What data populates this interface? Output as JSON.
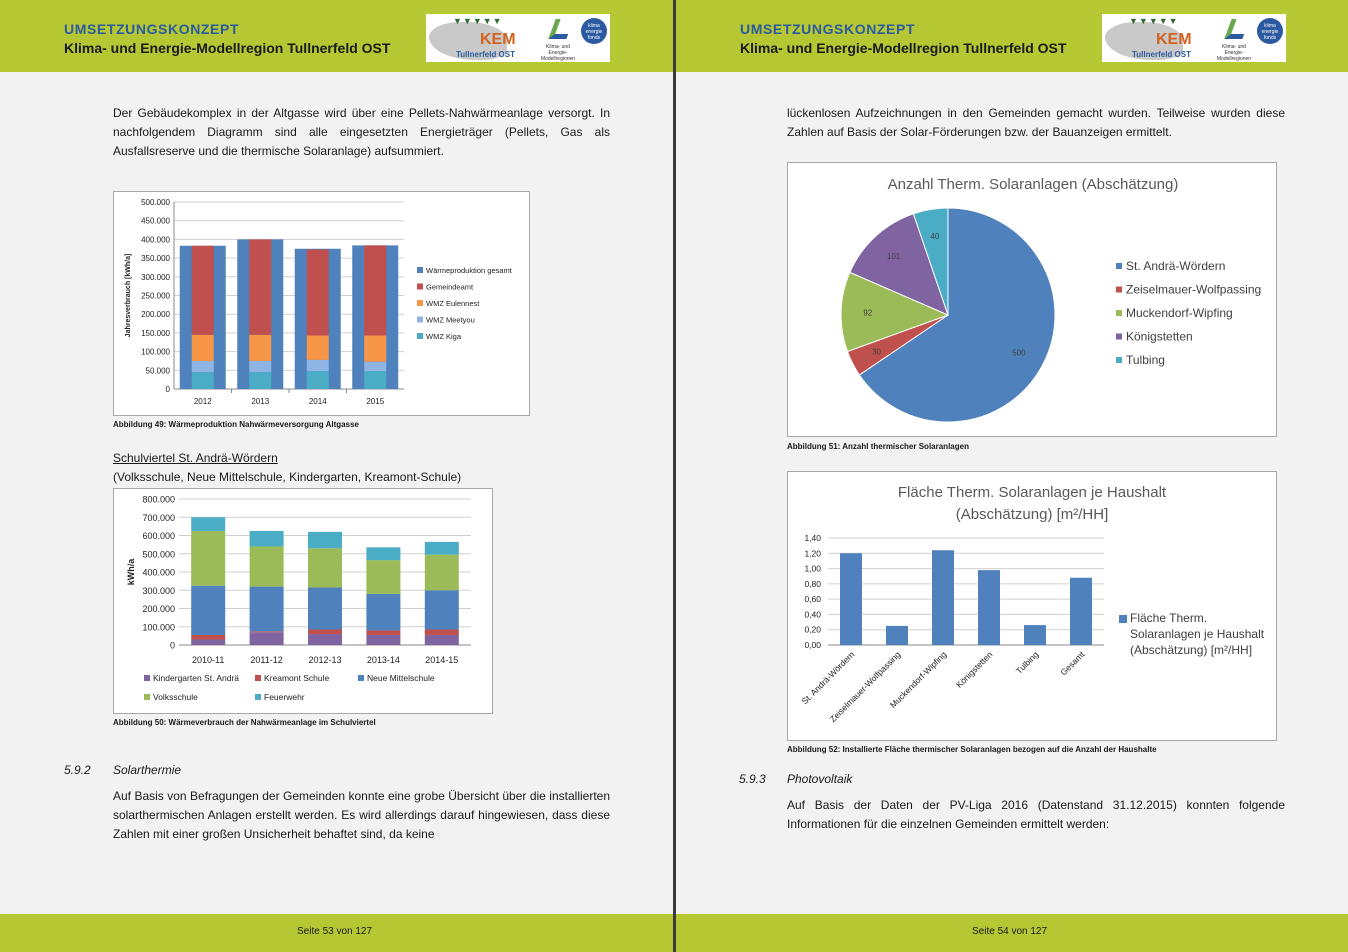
{
  "header": {
    "title": "UMSETZUNGSKONZEPT",
    "subtitle": "Klima- und Energie-Modellregion Tullnerfeld OST",
    "logo_text": "KEM",
    "logo_sub": "Tullnerfeld OST",
    "logo_right": "Klima- und Energie-Modellregionen",
    "logo_fund": "klima energie fonds"
  },
  "colors": {
    "accent_green": "#b5c733",
    "header_blue": "#2c5aa0"
  },
  "page53": {
    "para1": "Der Gebäudekomplex in der Altgasse wird über eine Pellets-Nahwärmeanlage versorgt. In nachfolgendem Diagramm sind alle eingesetzten Energieträger (Pellets, Gas als Ausfallsreserve und die thermische Solaranlage) aufsummiert.",
    "caption49": "Abbildung 49:   Wärmeproduktion Nahwärmeversorgung Altgasse",
    "schul_title": "Schulviertel St. Andrä-Wördern",
    "schul_sub": "(Volksschule, Neue Mittelschule, Kindergarten, Kreamont-Schule)",
    "caption50": "Abbildung 50:   Wärmeverbrauch der Nahwärmeanlage im Schulviertel",
    "section_num": "5.9.2",
    "section_title": "Solarthermie",
    "para2": "Auf Basis von Befragungen der Gemeinden konnte eine grobe Übersicht über die installierten solarthermischen Anlagen erstellt werden. Es wird allerdings darauf hingewiesen, dass diese Zahlen mit einer großen Unsicherheit behaftet sind, da keine",
    "footer": "Seite 53 von 127"
  },
  "page54": {
    "para1": "lückenlosen Aufzeichnungen in den Gemeinden gemacht wurden. Teilweise wurden diese Zahlen auf Basis der Solar-Förderungen bzw. der Bauanzeigen ermittelt.",
    "caption51": "Abbildung 51:   Anzahl thermischer Solaranlagen",
    "caption52": "Abbildung 52:   Installierte Fläche thermischer Solaranlagen bezogen auf die Anzahl der Haushalte",
    "section_num": "5.9.3",
    "section_title": "Photovoltaik",
    "para2": "Auf Basis der Daten der PV-Liga 2016 (Datenstand 31.12.2015) konnten folgende Informationen für die einzelnen Gemeinden ermittelt werden:",
    "footer": "Seite 54 von 127"
  },
  "chart_data": [
    {
      "id": "chart49",
      "type": "bar",
      "title": "",
      "xlabel": "",
      "ylabel": "Jahresverbrauch [kWh/a]",
      "ylim": [
        0,
        500000
      ],
      "yticks": [
        "0",
        "50.000",
        "100.000",
        "150.000",
        "200.000",
        "250.000",
        "300.000",
        "350.000",
        "400.000",
        "450.000",
        "500.000"
      ],
      "categories": [
        "2012",
        "2013",
        "2014",
        "2015"
      ],
      "series": [
        {
          "name": "Wärmeproduktion gesamt",
          "color": "#4f81bd",
          "values": [
            383000,
            400000,
            375000,
            384000
          ]
        },
        {
          "name": "Gemeindeamt",
          "color": "#c0504d",
          "values": [
            238000,
            255000,
            230000,
            241000
          ]
        },
        {
          "name": "WMZ Eulennest",
          "color": "#f79646",
          "values": [
            70000,
            70000,
            65000,
            70000
          ]
        },
        {
          "name": "WMZ Meetyou",
          "color": "#8eb4e3",
          "values": [
            30000,
            30000,
            30000,
            25000
          ]
        },
        {
          "name": "WMZ Kiga",
          "color": "#4bacc6",
          "values": [
            45000,
            45000,
            48000,
            48000
          ]
        }
      ],
      "legend": "right"
    },
    {
      "id": "chart50",
      "type": "bar",
      "stacked": true,
      "title": "",
      "ylabel": "kWh/a",
      "ylim": [
        0,
        800000
      ],
      "yticks": [
        "0",
        "100.000",
        "200.000",
        "300.000",
        "400.000",
        "500.000",
        "600.000",
        "700.000",
        "800.000"
      ],
      "categories": [
        "2010-11",
        "2011-12",
        "2012-13",
        "2013-14",
        "2014-15"
      ],
      "series": [
        {
          "name": "Kindergarten St. Andrä",
          "color": "#8064a2",
          "values": [
            30000,
            70000,
            60000,
            55000,
            55000
          ]
        },
        {
          "name": "Kreamont Schule",
          "color": "#c0504d",
          "values": [
            25000,
            5000,
            25000,
            25000,
            30000
          ]
        },
        {
          "name": "Neue Mittelschule",
          "color": "#4f81bd",
          "values": [
            270000,
            245000,
            230000,
            200000,
            215000
          ]
        },
        {
          "name": "Volksschule",
          "color": "#9bbb59",
          "values": [
            300000,
            220000,
            215000,
            185000,
            195000
          ]
        },
        {
          "name": "Feuerwehr",
          "color": "#4bacc6",
          "values": [
            75000,
            85000,
            90000,
            70000,
            70000
          ]
        }
      ],
      "legend": "bottom"
    },
    {
      "id": "chart51",
      "type": "pie",
      "title": "Anzahl Therm. Solaranlagen (Abschätzung)",
      "labels": [
        "St. Andrä-Wördern",
        "Zeiselmauer-Wolfpassing",
        "Muckendorf-Wipfing",
        "Königstetten",
        "Tulbing"
      ],
      "values": [
        500,
        30,
        92,
        101,
        40
      ],
      "colors": [
        "#4f81bd",
        "#c0504d",
        "#9bbb59",
        "#8064a2",
        "#4bacc6"
      ],
      "legend": "right"
    },
    {
      "id": "chart52",
      "type": "bar",
      "title": "Fläche Therm. Solaranlagen je Haushalt (Abschätzung) [m²/HH]",
      "ylim": [
        0,
        1.4
      ],
      "yticks": [
        "0,00",
        "0,20",
        "0,40",
        "0,60",
        "0,80",
        "1,00",
        "1,20",
        "1,40"
      ],
      "categories": [
        "St. Andrä-Wördern",
        "Zeiselmauer-Wolfpassing",
        "Muckendorf-Wipfing",
        "Königstetten",
        "Tulbing",
        "Gesamt"
      ],
      "series": [
        {
          "name": "Fläche Therm. Solaranlagen je Haushalt (Abschätzung) [m²/HH]",
          "color": "#4f81bd",
          "values": [
            1.2,
            0.25,
            1.24,
            0.98,
            0.26,
            0.88
          ]
        }
      ],
      "legend": "right"
    }
  ]
}
